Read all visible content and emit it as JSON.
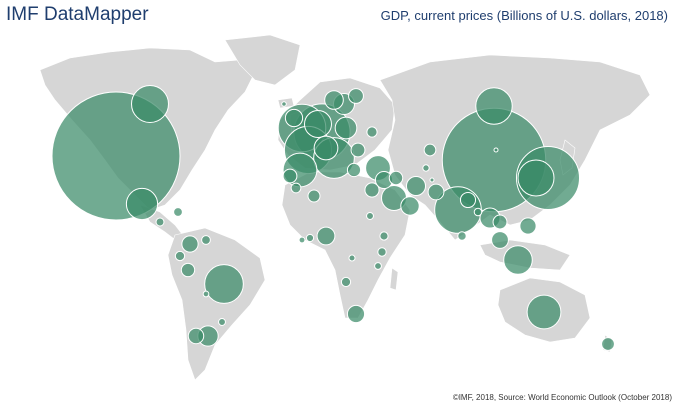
{
  "header": {
    "app_title": "IMF DataMapper",
    "indicator_title": "GDP, current prices (Billions of U.S. dollars, 2018)"
  },
  "footer": {
    "credit": "©IMF, 2018, Source: World Economic Outlook (October 2018)"
  },
  "colors": {
    "land": "#d6d6d6",
    "bubble": "#3a8a68",
    "bubble_stroke": "#ffffff",
    "text": "#1f3e6e"
  },
  "chart_data": {
    "type": "bubble-map",
    "metric": "GDP, current prices (Billions of U.S. dollars, 2018)",
    "regions": [
      {
        "name": "United States",
        "value": 20500
      },
      {
        "name": "China",
        "value": 13400
      },
      {
        "name": "Japan",
        "value": 4970
      },
      {
        "name": "Germany",
        "value": 3950
      },
      {
        "name": "United Kingdom",
        "value": 2830
      },
      {
        "name": "France",
        "value": 2780
      },
      {
        "name": "India",
        "value": 2720
      },
      {
        "name": "Italy",
        "value": 2070
      },
      {
        "name": "Brazil",
        "value": 1870
      },
      {
        "name": "Canada",
        "value": 1710
      },
      {
        "name": "Russia",
        "value": 1660
      },
      {
        "name": "South Korea",
        "value": 1620
      },
      {
        "name": "Australia",
        "value": 1430
      },
      {
        "name": "Spain",
        "value": 1430
      },
      {
        "name": "Mexico",
        "value": 1220
      },
      {
        "name": "Indonesia",
        "value": 1020
      },
      {
        "name": "Netherlands",
        "value": 910
      },
      {
        "name": "Saudi Arabia",
        "value": 780
      },
      {
        "name": "Turkey",
        "value": 770
      },
      {
        "name": "Switzerland",
        "value": 705
      },
      {
        "name": "Poland",
        "value": 586
      },
      {
        "name": "Sweden",
        "value": 551
      },
      {
        "name": "Argentina",
        "value": 519
      },
      {
        "name": "Iran",
        "value": 454
      },
      {
        "name": "Norway",
        "value": 434
      },
      {
        "name": "Thailand",
        "value": 505
      },
      {
        "name": "Nigeria",
        "value": 397
      },
      {
        "name": "South Africa",
        "value": 368
      },
      {
        "name": "Egypt",
        "value": 250
      },
      {
        "name": "Pakistan",
        "value": 312
      },
      {
        "name": "Colombia",
        "value": 331
      },
      {
        "name": "Chile",
        "value": 298
      },
      {
        "name": "Peru",
        "value": 222
      },
      {
        "name": "Philippines",
        "value": 331
      },
      {
        "name": "Malaysia",
        "value": 354
      },
      {
        "name": "Vietnam",
        "value": 241
      },
      {
        "name": "Bangladesh",
        "value": 285
      },
      {
        "name": "Kazakhstan",
        "value": 170
      },
      {
        "name": "Algeria",
        "value": 180
      },
      {
        "name": "Iraq",
        "value": 226
      },
      {
        "name": "New Zealand",
        "value": 205
      },
      {
        "name": "Venezuela",
        "value": 96
      },
      {
        "name": "Ukraine",
        "value": 131
      },
      {
        "name": "Ethiopia",
        "value": 84
      },
      {
        "name": "Kenya",
        "value": 88
      },
      {
        "name": "Morocco",
        "value": 118
      },
      {
        "name": "Angola",
        "value": 106
      },
      {
        "name": "Sudan",
        "value": 60
      },
      {
        "name": "Ecuador",
        "value": 108
      },
      {
        "name": "Mongolia",
        "value": 13
      },
      {
        "name": "Finland",
        "value": 276
      },
      {
        "name": "Greece",
        "value": 218
      },
      {
        "name": "Romania",
        "value": 240
      },
      {
        "name": "Israel",
        "value": 366
      },
      {
        "name": "United Arab Emirates",
        "value": 424
      },
      {
        "name": "Portugal",
        "value": 238
      },
      {
        "name": "Ireland",
        "value": 372
      },
      {
        "name": "Iceland",
        "value": 26
      },
      {
        "name": "Cuba",
        "value": 97
      },
      {
        "name": "Guatemala",
        "value": 79
      },
      {
        "name": "Bolivia",
        "value": 40
      },
      {
        "name": "Uruguay",
        "value": 60
      },
      {
        "name": "Myanmar",
        "value": 71
      },
      {
        "name": "Sri Lanka",
        "value": 89
      },
      {
        "name": "Tanzania",
        "value": 58
      },
      {
        "name": "Ghana",
        "value": 65
      },
      {
        "name": "Cote d'Ivoire",
        "value": 43
      },
      {
        "name": "DR Congo",
        "value": 46
      },
      {
        "name": "Uzbekistan",
        "value": 51
      },
      {
        "name": "Afghanistan",
        "value": 19
      }
    ]
  }
}
